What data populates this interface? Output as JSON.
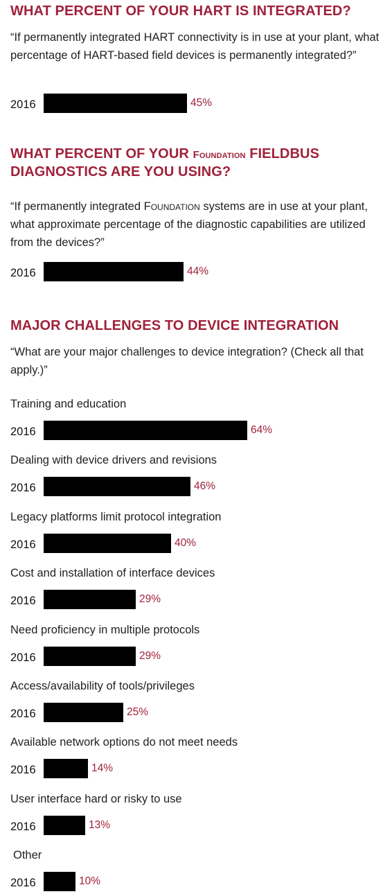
{
  "colors": {
    "accent": "#a0213a",
    "bar": "#000000"
  },
  "chart_data": [
    {
      "type": "bar",
      "title_parts": [
        "WHAT PERCENT OF YOUR HART IS INTEGRATED?"
      ],
      "subtitle": "“If permanently integrated HART connectivity is in use at your plant, what percentage of HART-based field devices is permanently integrated?”",
      "categories": [
        "2016"
      ],
      "values": [
        45
      ],
      "value_labels": [
        "45%"
      ],
      "unit": "%"
    },
    {
      "type": "bar",
      "title_parts": [
        "WHAT PERCENT OF YOUR ",
        "Foundation",
        " FIELDBUS DIAGNOSTICS ARE YOU USING?"
      ],
      "subtitle_parts": [
        "“If permanently integrated ",
        "Foundation",
        " systems are in use at your plant, what approximate percentage of the diagnostic capabilities are utilized from the devices?”"
      ],
      "categories": [
        "2016"
      ],
      "values": [
        44
      ],
      "value_labels": [
        "44%"
      ],
      "unit": "%"
    },
    {
      "type": "bar",
      "title": "MAJOR CHALLENGES TO DEVICE INTEGRATION",
      "subtitle": "“What are your major challenges to device integration? (Check all that apply.)”",
      "year": "2016",
      "categories": [
        "Training and education",
        "Dealing with device drivers and revisions",
        "Legacy platforms limit protocol integration",
        "Cost and installation of interface devices",
        "Need proficiency in multiple protocols",
        "Access/availability of tools/privileges",
        "Available network options do not meet needs",
        "User interface hard or risky to use",
        "Other"
      ],
      "values": [
        64,
        46,
        40,
        29,
        29,
        25,
        14,
        13,
        10
      ],
      "value_labels": [
        "64%",
        "46%",
        "40%",
        "29%",
        "29%",
        "25%",
        "14%",
        "13%",
        "10%"
      ],
      "unit": "%"
    }
  ]
}
